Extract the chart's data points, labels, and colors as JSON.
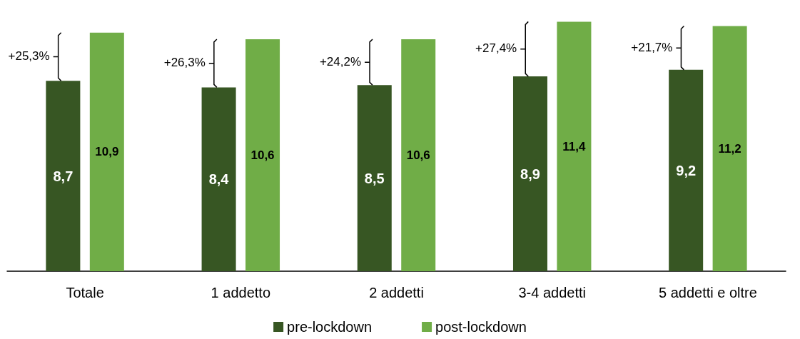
{
  "chart_data": {
    "type": "bar",
    "categories": [
      "Totale",
      "1 addetto",
      "2 addetti",
      "3-4 addetti",
      "5 addetti e oltre"
    ],
    "series": [
      {
        "name": "pre-lockdown",
        "color": "#375623",
        "values": [
          8.7,
          8.4,
          8.5,
          8.9,
          9.2
        ],
        "value_labels": [
          "8,7",
          "8,4",
          "8,5",
          "8,9",
          "9,2"
        ]
      },
      {
        "name": "post-lockdown",
        "color": "#70ad47",
        "values": [
          10.9,
          10.6,
          10.6,
          11.4,
          11.2
        ],
        "value_labels": [
          "10,9",
          "10,6",
          "10,6",
          "11,4",
          "11,2"
        ]
      }
    ],
    "tick_labels": "x",
    "grid": false,
    "legend": "bottom",
    "annotations": [
      "+25,3%",
      "+26,3%",
      "+24,2%",
      "+27,4%",
      "+21,7%"
    ]
  }
}
